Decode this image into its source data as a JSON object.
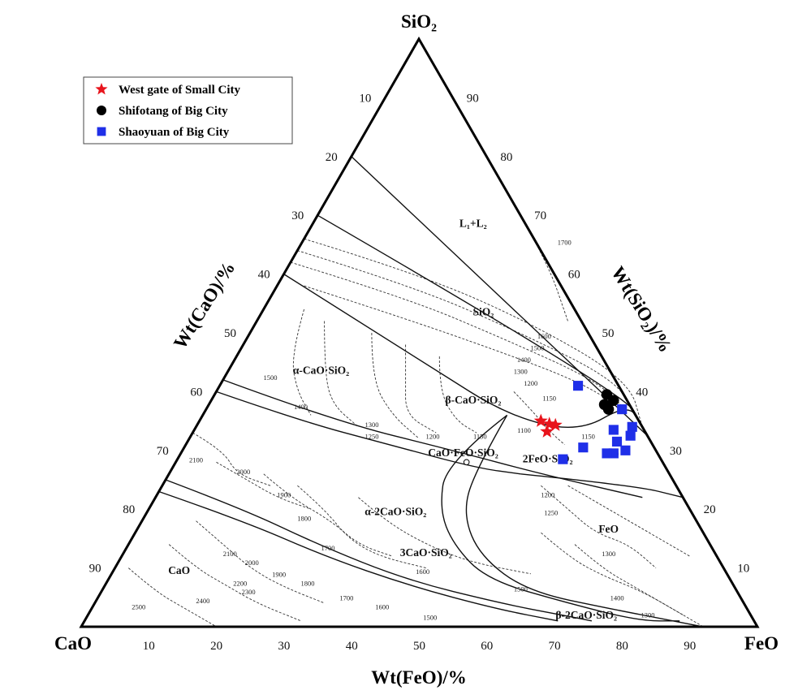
{
  "chart_data": {
    "type": "scatter",
    "subtype": "ternary",
    "components": {
      "top": "SiO₂",
      "left": "CaO",
      "right": "FeO"
    },
    "axis_titles": {
      "left": "Wt(CaO)/%",
      "right": "Wt(SiO₂)/%",
      "bottom": "Wt(FeO)/%"
    },
    "ticks": {
      "left_cao": [
        "10",
        "20",
        "30",
        "40",
        "50",
        "60",
        "70",
        "80",
        "90"
      ],
      "right_sio2": [
        "90",
        "80",
        "70",
        "60",
        "50",
        "40",
        "30",
        "20",
        "10"
      ],
      "bottom_feo": [
        "10",
        "20",
        "30",
        "40",
        "50",
        "60",
        "70",
        "80",
        "90"
      ]
    },
    "legend": {
      "placement": "top-left",
      "entries": [
        {
          "name": "West gate of Small City",
          "marker": "star",
          "color": "#e8141c"
        },
        {
          "name": "Shifotang of Big City",
          "marker": "circle",
          "color": "#000000"
        },
        {
          "name": "Shaoyuan of Big City",
          "marker": "square",
          "color": "#1f2fe8"
        }
      ]
    },
    "phase_labels": [
      {
        "text": "L₁+L₂",
        "feo": 24,
        "sio2": 68
      },
      {
        "text": "SiO₂",
        "feo": 33,
        "sio2": 53
      },
      {
        "text": "α-CaO·SiO₂",
        "feo": 14,
        "sio2": 43
      },
      {
        "text": "β-CaO·SiO₂",
        "feo": 39,
        "sio2": 38
      },
      {
        "text": "CaO·FeO·SiO₂",
        "feo": 42,
        "sio2": 29
      },
      {
        "text": "2FeO·SiO₂",
        "feo": 55,
        "sio2": 28
      },
      {
        "text": "α-2CaO·SiO₂",
        "feo": 37,
        "sio2": 19
      },
      {
        "text": "3CaO·SiO₂",
        "feo": 45,
        "sio2": 12
      },
      {
        "text": "CaO",
        "feo": 10,
        "sio2": 9
      },
      {
        "text": "FeO",
        "feo": 70,
        "sio2": 16
      },
      {
        "text": "β-2CaO·SiO₂",
        "feo": 74,
        "sio2": 1.4
      }
    ],
    "isotherm_labels": [
      {
        "text": "1700",
        "feo": 39,
        "sio2": 65
      },
      {
        "text": "1600",
        "feo": 44,
        "sio2": 49
      },
      {
        "text": "1500",
        "feo": 44,
        "sio2": 47
      },
      {
        "text": "1400",
        "feo": 43,
        "sio2": 45
      },
      {
        "text": "1300",
        "feo": 43.5,
        "sio2": 43
      },
      {
        "text": "1200",
        "feo": 46,
        "sio2": 41
      },
      {
        "text": "1150",
        "feo": 50,
        "sio2": 38.5
      },
      {
        "text": "1500",
        "feo": 7,
        "sio2": 42
      },
      {
        "text": "1400",
        "feo": 14,
        "sio2": 37
      },
      {
        "text": "1300",
        "feo": 26,
        "sio2": 34
      },
      {
        "text": "1250",
        "feo": 27,
        "sio2": 32
      },
      {
        "text": "1200",
        "feo": 36,
        "sio2": 32
      },
      {
        "text": "1150",
        "feo": 43,
        "sio2": 32
      },
      {
        "text": "1100",
        "feo": 49,
        "sio2": 33
      },
      {
        "text": "1150",
        "feo": 59,
        "sio2": 32
      },
      {
        "text": "1200",
        "feo": 64,
        "sio2": 29
      },
      {
        "text": "1200",
        "feo": 58,
        "sio2": 22
      },
      {
        "text": "1250",
        "feo": 60,
        "sio2": 19
      },
      {
        "text": "1300",
        "feo": 72,
        "sio2": 12
      },
      {
        "text": "2100",
        "feo": 3,
        "sio2": 28
      },
      {
        "text": "2000",
        "feo": 11,
        "sio2": 26
      },
      {
        "text": "1900",
        "feo": 19,
        "sio2": 22
      },
      {
        "text": "1800",
        "feo": 24,
        "sio2": 18
      },
      {
        "text": "1700",
        "feo": 30,
        "sio2": 13
      },
      {
        "text": "1600",
        "feo": 46,
        "sio2": 9
      },
      {
        "text": "1500",
        "feo": 62,
        "sio2": 6
      },
      {
        "text": "1400",
        "feo": 77,
        "sio2": 4.5
      },
      {
        "text": "1300",
        "feo": 83,
        "sio2": 1.6
      },
      {
        "text": "2100",
        "feo": 16,
        "sio2": 12
      },
      {
        "text": "2000",
        "feo": 20,
        "sio2": 10.5
      },
      {
        "text": "1900",
        "feo": 25,
        "sio2": 8.5
      },
      {
        "text": "1800",
        "feo": 30,
        "sio2": 7
      },
      {
        "text": "1700",
        "feo": 37,
        "sio2": 4.5
      },
      {
        "text": "1600",
        "feo": 43,
        "sio2": 3
      },
      {
        "text": "1500",
        "feo": 51,
        "sio2": 1.2
      },
      {
        "text": "2200",
        "feo": 20,
        "sio2": 7
      },
      {
        "text": "2300",
        "feo": 22,
        "sio2": 5.5
      },
      {
        "text": "2400",
        "feo": 16,
        "sio2": 4
      },
      {
        "text": "2500",
        "feo": 7,
        "sio2": 3
      }
    ],
    "series": [
      {
        "name": "West gate of Small City",
        "marker": "star",
        "points": [
          {
            "feo": 50.5,
            "sio2": 35
          },
          {
            "feo": 52,
            "sio2": 34.5
          },
          {
            "feo": 53,
            "sio2": 34.3
          },
          {
            "feo": 52.3,
            "sio2": 33.2
          }
        ]
      },
      {
        "name": "Shifotang of Big City",
        "marker": "circle",
        "points": [
          {
            "feo": 58,
            "sio2": 39.5
          },
          {
            "feo": 59.5,
            "sio2": 38.5
          },
          {
            "feo": 58.5,
            "sio2": 37.8
          },
          {
            "feo": 59.5,
            "sio2": 37
          }
        ]
      },
      {
        "name": "Shaoyuan of Big City",
        "marker": "square",
        "points": [
          {
            "feo": 53,
            "sio2": 41
          },
          {
            "feo": 61.5,
            "sio2": 37
          },
          {
            "feo": 62,
            "sio2": 33.5
          },
          {
            "feo": 63.5,
            "sio2": 31.5
          },
          {
            "feo": 64.5,
            "sio2": 34
          },
          {
            "feo": 65,
            "sio2": 32.5
          },
          {
            "feo": 65.5,
            "sio2": 30
          },
          {
            "feo": 64,
            "sio2": 29.5
          },
          {
            "feo": 63,
            "sio2": 29.5
          },
          {
            "feo": 59,
            "sio2": 30.5
          },
          {
            "feo": 57,
            "sio2": 28.5
          }
        ]
      }
    ],
    "open_point": {
      "feo": 43,
      "sio2": 28
    },
    "boundary_lines": [
      [
        [
          0,
          80
        ],
        [
          67.5,
          32.5
        ]
      ],
      [
        [
          0,
          70
        ],
        [
          60,
          40
        ],
        [
          66,
          34
        ]
      ],
      [
        [
          0,
          60
        ],
        [
          30,
          44
        ],
        [
          45,
          36
        ],
        [
          57,
          33
        ],
        [
          62,
          38
        ],
        [
          66,
          34
        ]
      ],
      [
        [
          0,
          42
        ],
        [
          20,
          35
        ],
        [
          40,
          30
        ],
        [
          55,
          26
        ],
        [
          72,
          22
        ]
      ],
      [
        [
          0,
          40
        ],
        [
          15,
          35
        ],
        [
          30,
          31
        ],
        [
          45,
          27
        ],
        [
          52,
          26
        ]
      ],
      [
        [
          45,
          36
        ],
        [
          40,
          28
        ],
        [
          43,
          20
        ],
        [
          48,
          14
        ],
        [
          56,
          8
        ],
        [
          70,
          4
        ],
        [
          82,
          1
        ],
        [
          88,
          1
        ]
      ],
      [
        [
          45,
          36
        ],
        [
          45,
          26
        ],
        [
          47,
          19
        ],
        [
          53,
          12
        ],
        [
          63,
          6
        ],
        [
          77,
          3
        ],
        [
          87,
          1
        ],
        [
          92,
          0
        ]
      ],
      [
        [
          0,
          25
        ],
        [
          14,
          20
        ],
        [
          28,
          14
        ],
        [
          44,
          8
        ],
        [
          60,
          4
        ],
        [
          70,
          2
        ],
        [
          75,
          1
        ]
      ],
      [
        [
          0,
          23
        ],
        [
          15,
          18
        ],
        [
          30,
          12
        ],
        [
          45,
          7
        ],
        [
          60,
          3
        ],
        [
          70,
          1
        ]
      ],
      [
        [
          52,
          26
        ],
        [
          70,
          24
        ],
        [
          78,
          22
        ]
      ]
    ],
    "grid": false
  }
}
